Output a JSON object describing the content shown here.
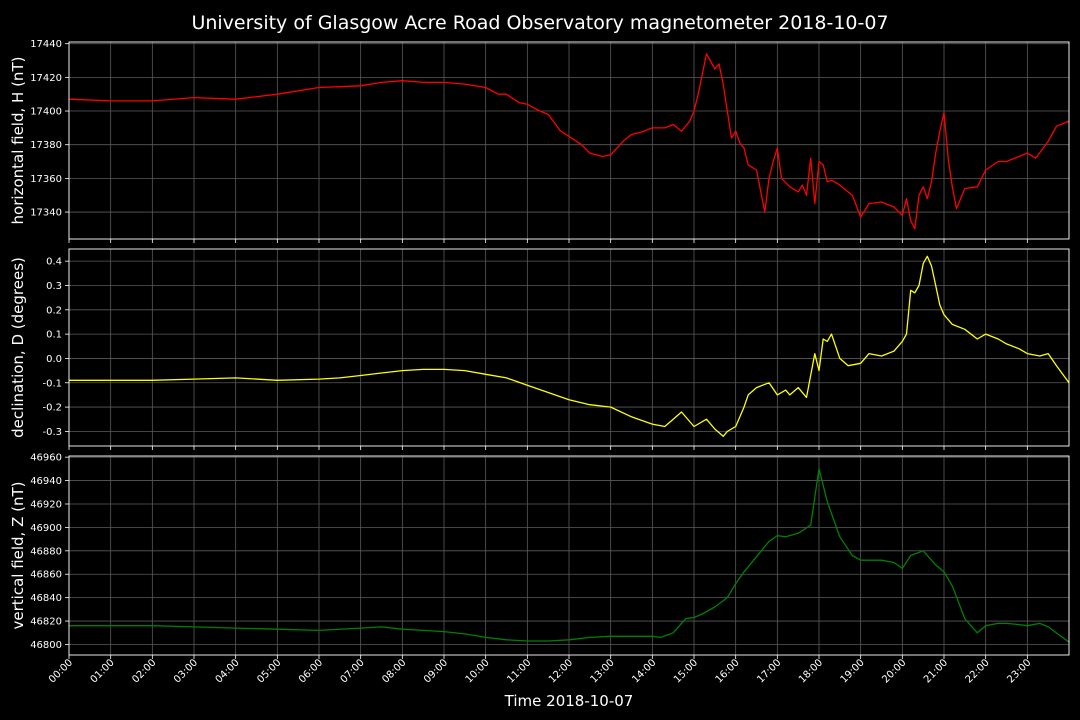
{
  "chart_data": {
    "type": "line",
    "title": "University of Glasgow Acre Road Observatory magnetometer 2018-10-07",
    "xlabel": "Time 2018-10-07",
    "x_ticks": [
      "00:00",
      "01:00",
      "02:00",
      "03:00",
      "04:00",
      "05:00",
      "06:00",
      "07:00",
      "08:00",
      "09:00",
      "10:00",
      "11:00",
      "12:00",
      "13:00",
      "14:00",
      "15:00",
      "16:00",
      "17:00",
      "18:00",
      "19:00",
      "20:00",
      "21:00",
      "22:00",
      "23:00"
    ],
    "grid": true,
    "panels": [
      {
        "name": "H",
        "ylabel": "horizontal field, H (nT)",
        "color": "#ff0000",
        "ylim": [
          17324,
          17441
        ],
        "yticks": [
          17340,
          17360,
          17380,
          17400,
          17420,
          17440
        ],
        "x": [
          0,
          1,
          2,
          3,
          4,
          5,
          6,
          7,
          7.5,
          8,
          8.5,
          9,
          9.5,
          10,
          10.3,
          10.5,
          10.8,
          11,
          11.3,
          11.5,
          11.8,
          12,
          12.3,
          12.5,
          12.8,
          13,
          13.3,
          13.5,
          13.8,
          14,
          14.3,
          14.5,
          14.7,
          14.9,
          15,
          15.1,
          15.3,
          15.5,
          15.6,
          15.7,
          15.8,
          15.9,
          16,
          16.1,
          16.2,
          16.3,
          16.5,
          16.7,
          16.8,
          16.9,
          17,
          17.1,
          17.3,
          17.5,
          17.6,
          17.7,
          17.8,
          17.9,
          18,
          18.1,
          18.2,
          18.3,
          18.5,
          18.8,
          19,
          19.2,
          19.5,
          19.8,
          20,
          20.1,
          20.2,
          20.3,
          20.4,
          20.5,
          20.6,
          20.7,
          20.8,
          20.9,
          21,
          21.1,
          21.2,
          21.3,
          21.5,
          21.8,
          22,
          22.3,
          22.5,
          22.8,
          23,
          23.2,
          23.5,
          23.7,
          24
        ],
        "y": [
          17407,
          17406,
          17406,
          17408,
          17407,
          17410,
          17414,
          17415,
          17417,
          17418,
          17417,
          17417,
          17416,
          17414,
          17410,
          17410,
          17405,
          17404,
          17400,
          17398,
          17388,
          17385,
          17380,
          17375,
          17373,
          17374,
          17382,
          17386,
          17388,
          17390,
          17390,
          17392,
          17388,
          17394,
          17400,
          17410,
          17434,
          17425,
          17428,
          17416,
          17400,
          17384,
          17388,
          17381,
          17378,
          17368,
          17365,
          17340,
          17360,
          17370,
          17378,
          17360,
          17355,
          17352,
          17356,
          17350,
          17372,
          17345,
          17370,
          17368,
          17358,
          17359,
          17356,
          17350,
          17337,
          17345,
          17346,
          17343,
          17338,
          17348,
          17335,
          17330,
          17350,
          17355,
          17348,
          17358,
          17375,
          17388,
          17399,
          17372,
          17355,
          17342,
          17354,
          17355,
          17365,
          17370,
          17370,
          17373,
          17375,
          17372,
          17382,
          17391,
          17394
        ]
      },
      {
        "name": "D",
        "ylabel": "declination, D (degrees)",
        "color": "#ffff00",
        "ylim": [
          -0.36,
          0.45
        ],
        "yticks": [
          -0.3,
          -0.2,
          -0.1,
          0.0,
          0.1,
          0.2,
          0.3,
          0.4
        ],
        "x": [
          0,
          1,
          2,
          3,
          4,
          5,
          6,
          6.5,
          7,
          7.5,
          8,
          8.5,
          9,
          9.5,
          10,
          10.5,
          11,
          11.5,
          12,
          12.5,
          13,
          13.5,
          14,
          14.3,
          14.5,
          14.7,
          15,
          15.3,
          15.5,
          15.7,
          15.8,
          16,
          16.2,
          16.3,
          16.5,
          16.8,
          17,
          17.2,
          17.3,
          17.5,
          17.7,
          17.9,
          18,
          18.1,
          18.2,
          18.3,
          18.5,
          18.7,
          19,
          19.2,
          19.5,
          19.8,
          20,
          20.1,
          20.2,
          20.3,
          20.4,
          20.5,
          20.6,
          20.7,
          20.8,
          20.9,
          21,
          21.2,
          21.5,
          21.8,
          22,
          22.3,
          22.5,
          22.8,
          23,
          23.3,
          23.5,
          23.7,
          24
        ],
        "y": [
          -0.09,
          -0.09,
          -0.09,
          -0.085,
          -0.08,
          -0.09,
          -0.085,
          -0.08,
          -0.07,
          -0.06,
          -0.05,
          -0.045,
          -0.045,
          -0.05,
          -0.065,
          -0.08,
          -0.11,
          -0.14,
          -0.17,
          -0.19,
          -0.2,
          -0.24,
          -0.27,
          -0.28,
          -0.25,
          -0.22,
          -0.28,
          -0.25,
          -0.29,
          -0.32,
          -0.3,
          -0.28,
          -0.2,
          -0.15,
          -0.12,
          -0.1,
          -0.15,
          -0.13,
          -0.15,
          -0.12,
          -0.16,
          0.02,
          -0.05,
          0.08,
          0.07,
          0.1,
          0.0,
          -0.03,
          -0.02,
          0.02,
          0.01,
          0.03,
          0.07,
          0.1,
          0.28,
          0.27,
          0.3,
          0.39,
          0.42,
          0.38,
          0.3,
          0.22,
          0.18,
          0.14,
          0.12,
          0.08,
          0.1,
          0.08,
          0.06,
          0.04,
          0.02,
          0.01,
          0.02,
          -0.03,
          -0.1
        ]
      },
      {
        "name": "Z",
        "ylabel": "vertical field, Z (nT)",
        "color": "#008000",
        "ylim": [
          46791,
          46961
        ],
        "yticks": [
          46800,
          46820,
          46840,
          46860,
          46880,
          46900,
          46920,
          46940,
          46960
        ],
        "x": [
          0,
          1,
          2,
          3,
          4,
          5,
          6,
          7,
          7.5,
          8,
          8.5,
          9,
          9.5,
          10,
          10.5,
          11,
          11.5,
          12,
          12.5,
          13,
          13.5,
          14,
          14.2,
          14.5,
          14.8,
          15,
          15.2,
          15.5,
          15.8,
          16,
          16.2,
          16.5,
          16.8,
          17,
          17.2,
          17.5,
          17.8,
          18,
          18.2,
          18.5,
          18.8,
          19,
          19.3,
          19.5,
          19.8,
          20,
          20.2,
          20.5,
          20.8,
          21,
          21.2,
          21.5,
          21.8,
          22,
          22.3,
          22.5,
          22.8,
          23,
          23.3,
          23.5,
          24
        ],
        "y": [
          46816,
          46816,
          46816,
          46815,
          46814,
          46813,
          46812,
          46814,
          46815,
          46813,
          46812,
          46811,
          46809,
          46806,
          46804,
          46803,
          46803,
          46804,
          46806,
          46807,
          46807,
          46807,
          46806,
          46810,
          46822,
          46823,
          46826,
          46832,
          46840,
          46852,
          46862,
          46875,
          46888,
          46893,
          46892,
          46895,
          46902,
          46950,
          46922,
          46892,
          46876,
          46872,
          46872,
          46872,
          46870,
          46865,
          46876,
          46880,
          46868,
          46862,
          46850,
          46822,
          46810,
          46816,
          46818,
          46818,
          46817,
          46816,
          46818,
          46815,
          46802
        ]
      }
    ]
  }
}
